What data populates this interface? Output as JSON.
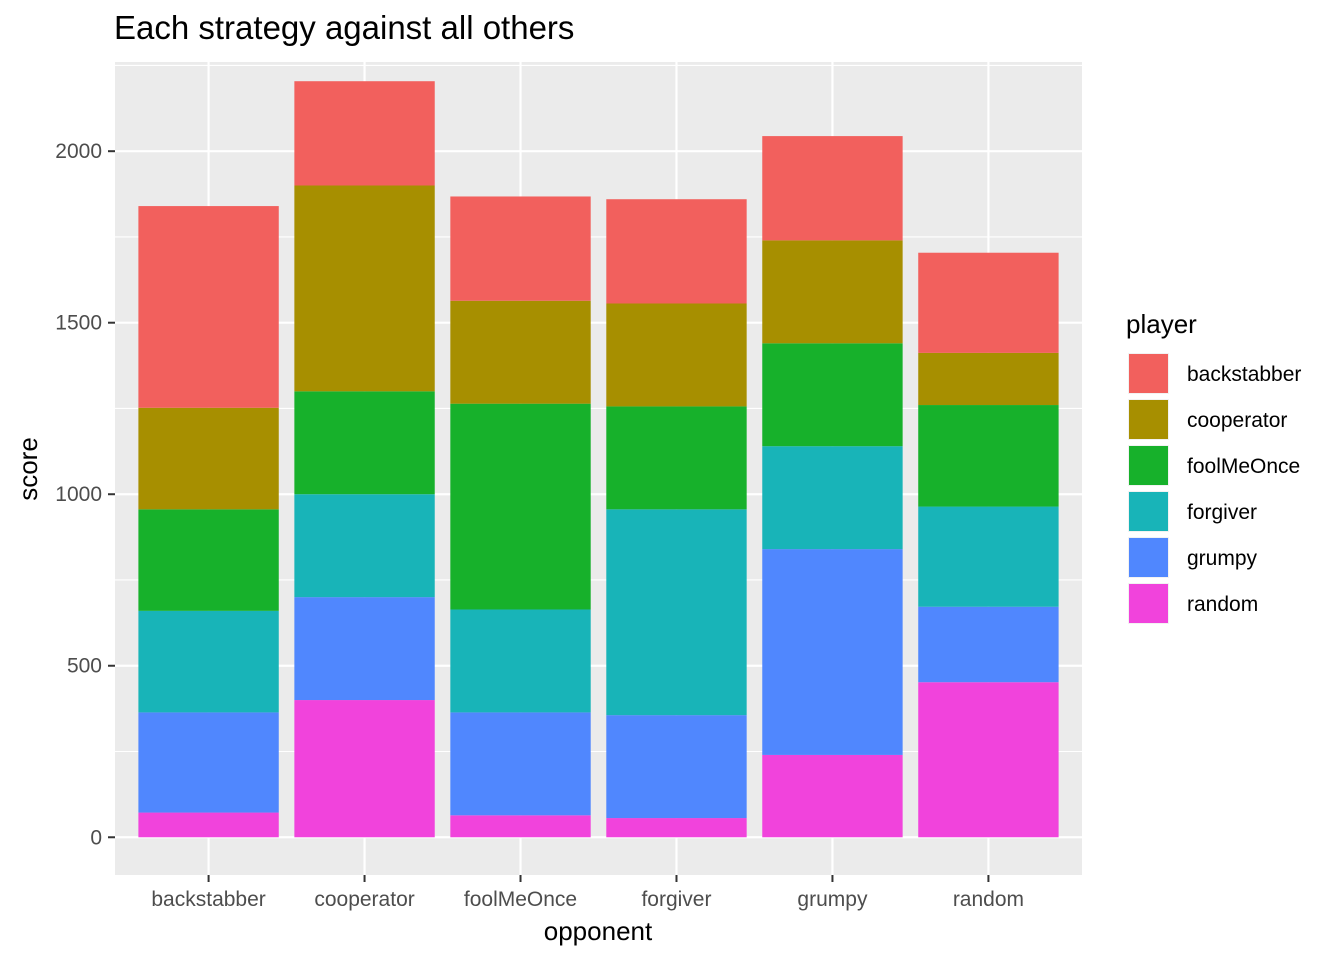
{
  "chart_data": {
    "type": "bar",
    "stacked": true,
    "title": "Each strategy against all others",
    "xlabel": "opponent",
    "ylabel": "score",
    "categories": [
      "backstabber",
      "cooperator",
      "foolMeOnce",
      "forgiver",
      "grumpy",
      "random"
    ],
    "ylim": [
      -110,
      2260
    ],
    "yticks": [
      0,
      500,
      1000,
      1500,
      2000
    ],
    "grid": true,
    "legend": {
      "title": "player",
      "position": "right"
    },
    "series": [
      {
        "name": "random",
        "color": "#F143DC",
        "values": [
          72,
          400,
          64,
          56,
          240,
          452
        ]
      },
      {
        "name": "grumpy",
        "color": "#5087FE",
        "values": [
          292,
          300,
          300,
          300,
          600,
          220
        ]
      },
      {
        "name": "forgiver",
        "color": "#18B4B8",
        "values": [
          296,
          300,
          300,
          600,
          300,
          292
        ]
      },
      {
        "name": "foolMeOnce",
        "color": "#17B12B",
        "values": [
          296,
          300,
          600,
          300,
          300,
          296
        ]
      },
      {
        "name": "cooperator",
        "color": "#A78F00",
        "values": [
          296,
          600,
          300,
          300,
          300,
          152
        ]
      },
      {
        "name": "backstabber",
        "color": "#F2605D",
        "values": [
          588,
          304,
          304,
          304,
          304,
          292
        ]
      }
    ],
    "legend_order": [
      "backstabber",
      "cooperator",
      "foolMeOnce",
      "forgiver",
      "grumpy",
      "random"
    ]
  }
}
